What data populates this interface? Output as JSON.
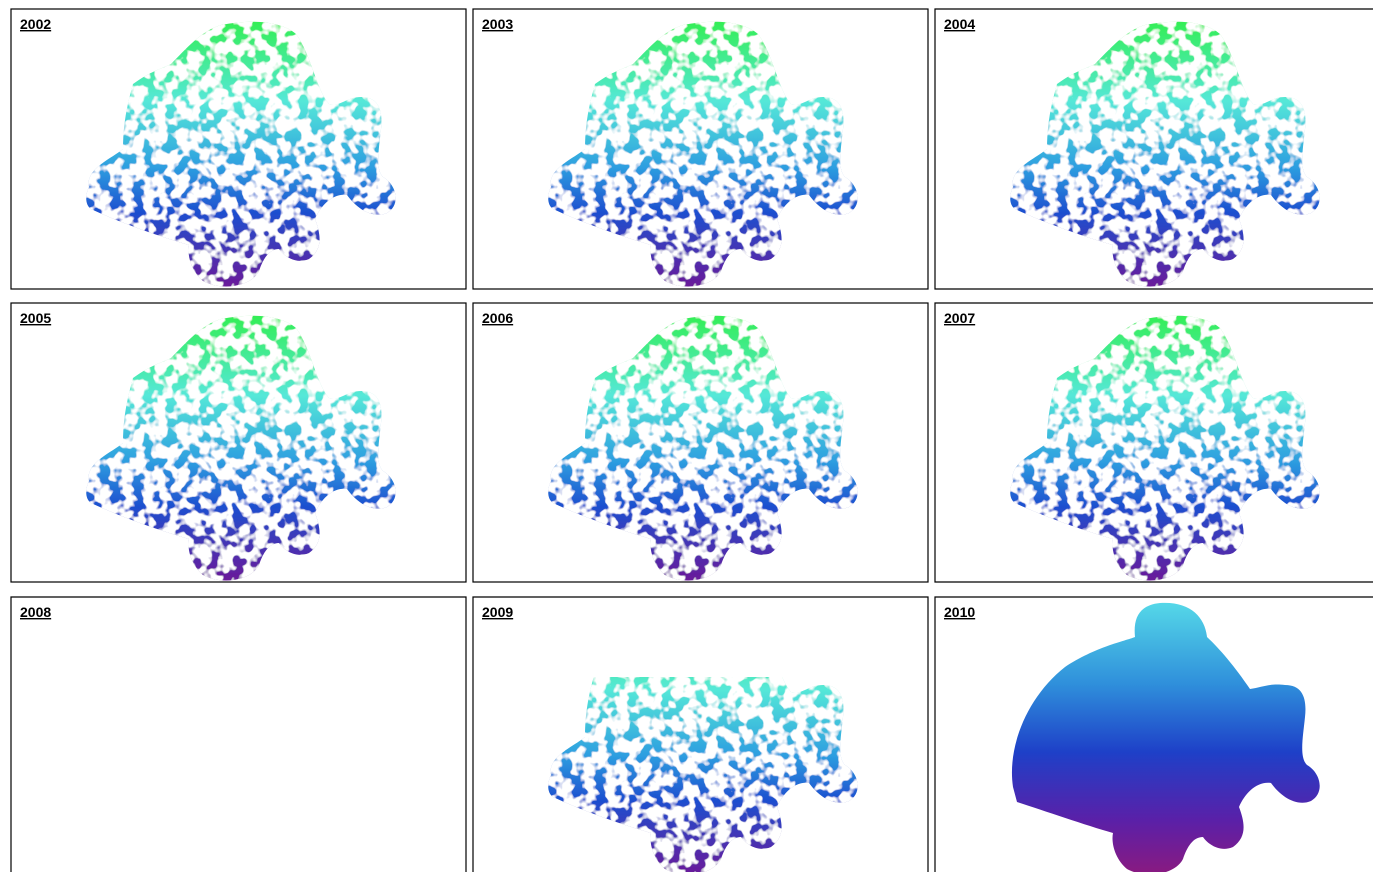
{
  "panels": [
    {
      "label": "2002"
    },
    {
      "label": "2003"
    },
    {
      "label": "2004"
    },
    {
      "label": "2005"
    },
    {
      "label": "2006"
    },
    {
      "label": "2007"
    },
    {
      "label": "2008"
    },
    {
      "label": "2009"
    },
    {
      "label": "2010"
    }
  ]
}
